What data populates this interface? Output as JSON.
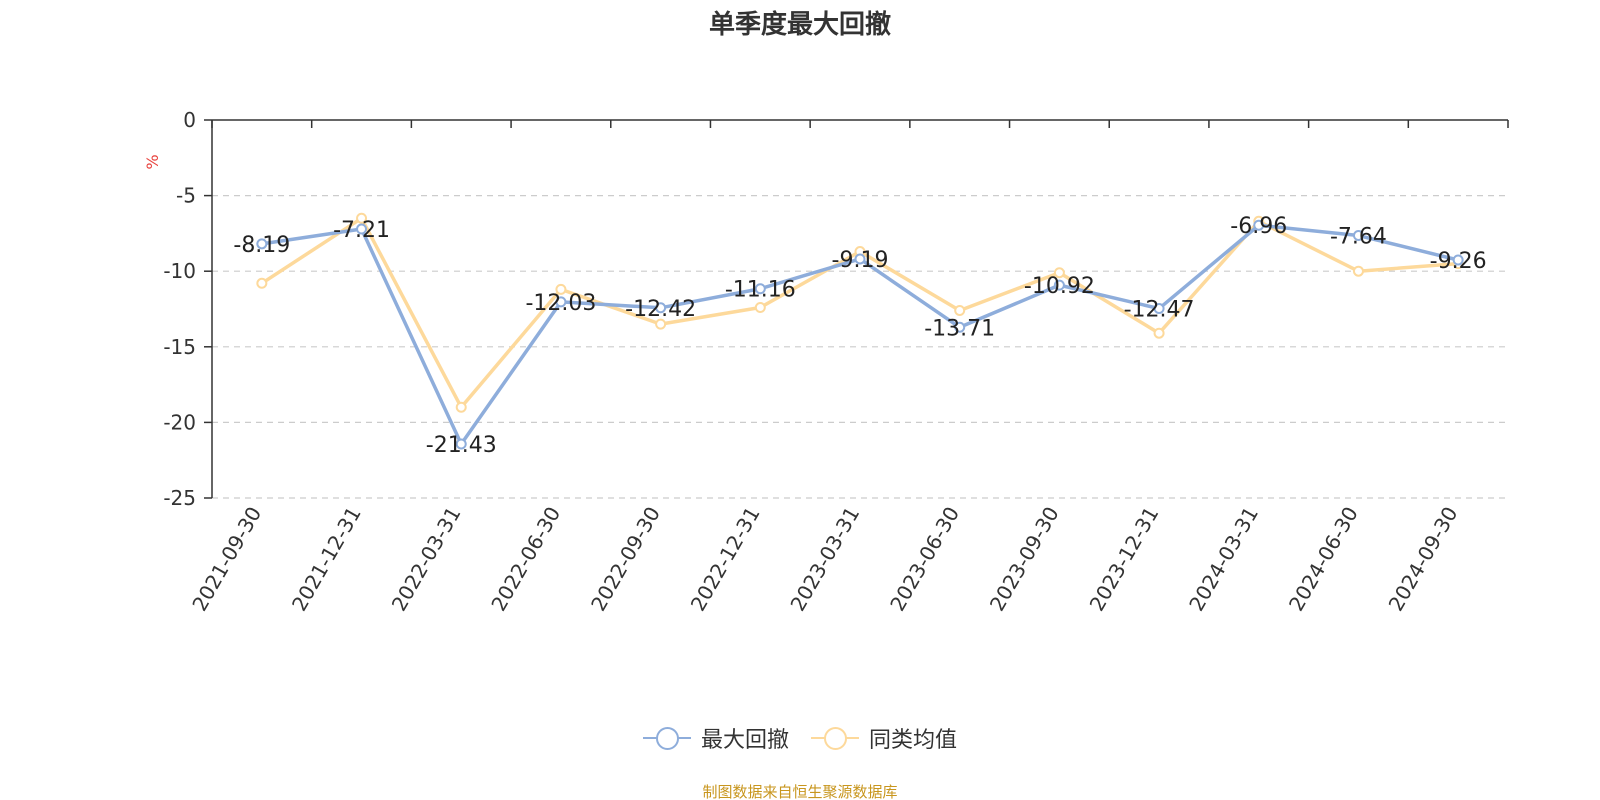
{
  "title": "单季度最大回撤",
  "source_note": "制图数据来自恒生聚源数据库",
  "colors": {
    "series_a": "#8eaddb",
    "series_b": "#fdd99b",
    "axis": "#333333",
    "grid": "#cccccc",
    "unit": "#e8413c",
    "source": "#c8961e"
  },
  "legend": [
    {
      "label": "最大回撤",
      "color": "#8eaddb"
    },
    {
      "label": "同类均值",
      "color": "#fdd99b"
    }
  ],
  "chart_data": {
    "type": "line",
    "title": "单季度最大回撤",
    "ylabel": "%",
    "xlabel": "",
    "ylim": [
      -25,
      0
    ],
    "yticks": [
      0,
      -5,
      -10,
      -15,
      -20,
      -25
    ],
    "grid": true,
    "legend_position": "bottom-center",
    "categories": [
      "2021-09-30",
      "2021-12-31",
      "2022-03-31",
      "2022-06-30",
      "2022-09-30",
      "2022-12-31",
      "2023-03-31",
      "2023-06-30",
      "2023-09-30",
      "2023-12-31",
      "2024-03-31",
      "2024-06-30",
      "2024-09-30"
    ],
    "series": [
      {
        "name": "最大回撤",
        "values": [
          -8.19,
          -7.21,
          -21.43,
          -12.03,
          -12.42,
          -11.16,
          -9.19,
          -13.71,
          -10.92,
          -12.47,
          -6.96,
          -7.64,
          -9.26
        ],
        "show_labels": true
      },
      {
        "name": "同类均值",
        "values": [
          -10.8,
          -6.5,
          -19.0,
          -11.2,
          -13.5,
          -12.4,
          -8.7,
          -12.6,
          -10.1,
          -14.1,
          -6.7,
          -10.0,
          -9.5
        ],
        "show_labels": false
      }
    ]
  }
}
